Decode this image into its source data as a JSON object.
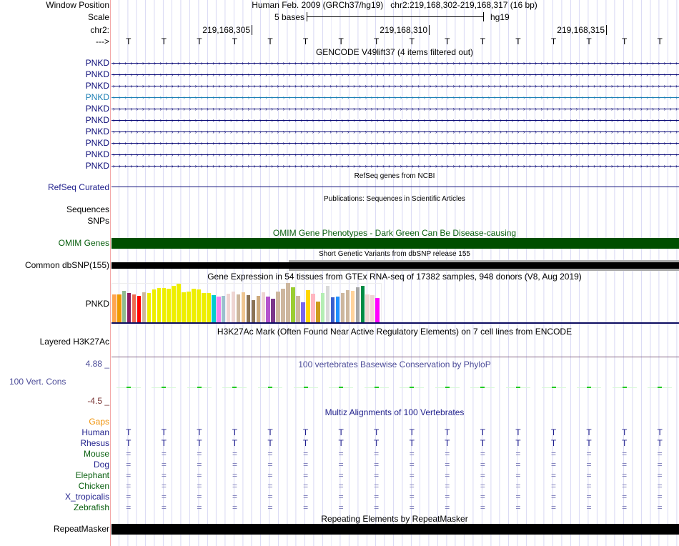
{
  "header": {
    "window_position_label": "Window Position",
    "title": "Human Feb. 2009 (GRCh37/hg19)   chr2:219,168,302-219,168,317 (16 bp)",
    "scale_label": "Scale",
    "scale_text": "5 bases",
    "scale_assembly": "hg19",
    "chrom_label": "chr2:",
    "ticks": [
      "219,168,305",
      "219,168,310",
      "219,168,315"
    ],
    "strand_label": "--->",
    "sequence": [
      "T",
      "T",
      "T",
      "T",
      "T",
      "T",
      "T",
      "T",
      "T",
      "T",
      "T",
      "T",
      "T",
      "T",
      "T",
      "T"
    ]
  },
  "gencode": {
    "title": "GENCODE V49lift37 (4 items filtered out)",
    "items": [
      "PNKD",
      "PNKD",
      "PNKD",
      "PNKD",
      "PNKD",
      "PNKD",
      "PNKD",
      "PNKD",
      "PNKD",
      "PNKD"
    ],
    "highlight_index": 3,
    "color": "#0c0c78",
    "highlight_color": "#1c7fb4"
  },
  "refseq": {
    "title": "RefSeq genes from NCBI",
    "label": "RefSeq Curated"
  },
  "publications": {
    "title": "Publications: Sequences in Scientific Articles",
    "labels": [
      "Sequences",
      "SNPs"
    ]
  },
  "omim": {
    "title": "OMIM Gene Phenotypes - Dark Green Can Be Disease-causing",
    "label": "OMIM Genes",
    "color": "#004f00"
  },
  "dbsnp": {
    "title": "Short Genetic Variants from dbSNP release 155",
    "label": "Common dbSNP(155)"
  },
  "gtex": {
    "title": "Gene Expression in 54 tissues from GTEx RNA-seq of 17382 samples, 948 donors (V8, Aug 2019)",
    "label": "PNKD",
    "values": [
      39,
      39,
      44,
      41,
      39,
      37,
      42,
      41,
      46,
      48,
      48,
      47,
      51,
      54,
      42,
      43,
      47,
      46,
      41,
      41,
      38,
      36,
      37,
      40,
      43,
      39,
      42,
      38,
      31,
      37,
      42,
      36,
      33,
      43,
      47,
      55,
      49,
      37,
      28,
      45,
      40,
      29,
      41,
      51,
      35,
      36,
      41,
      45,
      44,
      49,
      51,
      39,
      38,
      34
    ],
    "colors": [
      "#FFA54F",
      "#EE9A00",
      "#8FBC8F",
      "#8B1C62",
      "#EE6A50",
      "#FF0000",
      "#CDB79E",
      "#EEEE00",
      "#EEEE00",
      "#EEEE00",
      "#EEEE00",
      "#EEEE00",
      "#EEEE00",
      "#EEEE00",
      "#EEEE00",
      "#EEEE00",
      "#EEEE00",
      "#EEEE00",
      "#EEEE00",
      "#EEEE00",
      "#00CDCD",
      "#EE82EE",
      "#9AC0CD",
      "#EED5D2",
      "#EED5D2",
      "#CDB79E",
      "#EEC591",
      "#8B7355",
      "#8B7355",
      "#CDAA7D",
      "#EED5D2",
      "#B452CD",
      "#7A378B",
      "#CDB79E",
      "#CDB79E",
      "#CDB79E",
      "#9ACD32",
      "#CDB79E",
      "#7A67EE",
      "#FFD700",
      "#FFB6C1",
      "#CD9B1D",
      "#B4EEB4",
      "#D9D9D9",
      "#3A5FCD",
      "#1E90FF",
      "#CDB79E",
      "#CDB79E",
      "#FFD39B",
      "#A6A6A6",
      "#008B45",
      "#EED5D2",
      "#EED5D2",
      "#FF00FF"
    ]
  },
  "h3k27ac": {
    "title": "H3K27Ac Mark (Often Found Near Active Regulatory Elements) on 7 cell lines from ENCODE",
    "label": "Layered H3K27Ac"
  },
  "phylop": {
    "title": "100 vertebrates Basewise Conservation by PhyloP",
    "label": "100 Vert. Cons",
    "max": "4.88 _",
    "min": "-4.5 _"
  },
  "multiz": {
    "title": "Multiz Alignments of 100 Vertebrates",
    "gaps_label": "Gaps",
    "species": [
      {
        "name": "Human",
        "color": "#1f1f8c",
        "char": "T"
      },
      {
        "name": "Rhesus",
        "color": "#1f1f8c",
        "char": "T"
      },
      {
        "name": "Mouse",
        "color": "#0a6010",
        "char": "="
      },
      {
        "name": "Dog",
        "color": "#1f1f8c",
        "char": "="
      },
      {
        "name": "Elephant",
        "color": "#0a6010",
        "char": "="
      },
      {
        "name": "Chicken",
        "color": "#0a6010",
        "char": "="
      },
      {
        "name": "X_tropicalis",
        "color": "#1f1f8c",
        "char": "="
      },
      {
        "name": "Zebrafish",
        "color": "#0a6010",
        "char": "="
      }
    ]
  },
  "repeatmasker": {
    "title": "Repeating Elements by RepeatMasker",
    "label": "RepeatMasker"
  }
}
